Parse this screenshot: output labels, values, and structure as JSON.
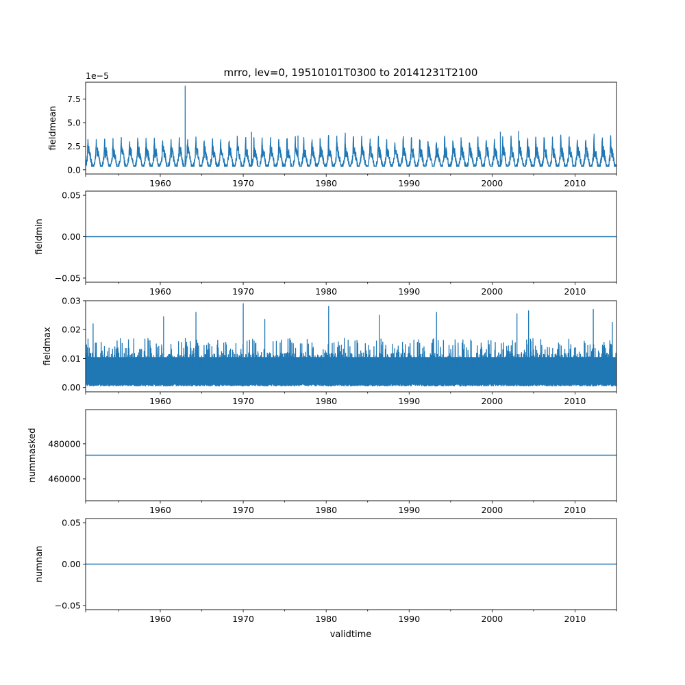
{
  "title": "mrro, lev=0, 19510101T0300 to 20141231T2100",
  "xlabel": "validtime",
  "line_color": "#1f77b4",
  "chart_data": [
    {
      "type": "line",
      "ylabel": "fieldmean",
      "offset_label": "1e−5",
      "yticks": [
        {
          "value": 0,
          "label": "0.0"
        },
        {
          "value": 2.5,
          "label": "2.5"
        },
        {
          "value": 5.0,
          "label": "5.0"
        },
        {
          "value": 7.5,
          "label": "7.5"
        }
      ],
      "xticks": [
        {
          "value": 1960,
          "label": "1960"
        },
        {
          "value": 1970,
          "label": "1970"
        },
        {
          "value": 1980,
          "label": "1980"
        },
        {
          "value": 1990,
          "label": "1990"
        },
        {
          "value": 2000,
          "label": "2000"
        },
        {
          "value": 2010,
          "label": "2010"
        }
      ],
      "xlim": [
        1951.0,
        2015.0
      ],
      "ylim": [
        -0.45,
        9.3
      ],
      "series": [
        {
          "name": "fieldmean",
          "pattern": "seasonal",
          "base": 1.05,
          "amp": 0.85,
          "noise": 0.6,
          "floor": 0.35,
          "spikes": [
            [
              1963.0,
              8.9
            ],
            [
              1971.0,
              4.0
            ],
            [
              1976.6,
              3.6
            ],
            [
              1982.3,
              3.9
            ],
            [
              2001.0,
              4.0
            ],
            [
              2003.2,
              4.1
            ],
            [
              2012.3,
              3.8
            ]
          ]
        }
      ]
    },
    {
      "type": "line",
      "ylabel": "fieldmin",
      "yticks": [
        {
          "value": -0.05,
          "label": "−0.05"
        },
        {
          "value": 0,
          "label": "0.00"
        },
        {
          "value": 0.05,
          "label": "0.05"
        }
      ],
      "xticks": [
        {
          "value": 1960,
          "label": "1960"
        },
        {
          "value": 1970,
          "label": "1970"
        },
        {
          "value": 1980,
          "label": "1980"
        },
        {
          "value": 1990,
          "label": "1990"
        },
        {
          "value": 2000,
          "label": "2000"
        },
        {
          "value": 2010,
          "label": "2010"
        }
      ],
      "xlim": [
        1951.0,
        2015.0
      ],
      "ylim": [
        -0.055,
        0.055
      ],
      "series": [
        {
          "name": "fieldmin",
          "pattern": "constant",
          "value": 0.0
        }
      ]
    },
    {
      "type": "line",
      "ylabel": "fieldmax",
      "yticks": [
        {
          "value": 0,
          "label": "0.00"
        },
        {
          "value": 0.01,
          "label": "0.01"
        },
        {
          "value": 0.02,
          "label": "0.02"
        },
        {
          "value": 0.03,
          "label": "0.03"
        }
      ],
      "xticks": [
        {
          "value": 1960,
          "label": "1960"
        },
        {
          "value": 1970,
          "label": "1970"
        },
        {
          "value": 1980,
          "label": "1980"
        },
        {
          "value": 1990,
          "label": "1990"
        },
        {
          "value": 2000,
          "label": "2000"
        },
        {
          "value": 2010,
          "label": "2010"
        }
      ],
      "xlim": [
        1951.0,
        2015.0
      ],
      "ylim": [
        -0.0015,
        0.03
      ],
      "series": [
        {
          "name": "fieldmax",
          "pattern": "dense",
          "floor": 0.0005,
          "typical": 0.012,
          "peak": 0.017,
          "spikes": [
            [
              1951.9,
              0.022
            ],
            [
              1960.4,
              0.0245
            ],
            [
              1964.3,
              0.026
            ],
            [
              1970.0,
              0.029
            ],
            [
              1972.6,
              0.0235
            ],
            [
              1980.3,
              0.028
            ],
            [
              1986.4,
              0.025
            ],
            [
              1993.3,
              0.026
            ],
            [
              2003.0,
              0.0255
            ],
            [
              2004.4,
              0.0265
            ],
            [
              2012.2,
              0.027
            ],
            [
              2014.5,
              0.0225
            ]
          ]
        }
      ]
    },
    {
      "type": "line",
      "ylabel": "nummasked",
      "yticks": [
        {
          "value": 460000,
          "label": "460000"
        },
        {
          "value": 480000,
          "label": "480000"
        }
      ],
      "xticks": [
        {
          "value": 1960,
          "label": "1960"
        },
        {
          "value": 1970,
          "label": "1970"
        },
        {
          "value": 1980,
          "label": "1980"
        },
        {
          "value": 1990,
          "label": "1990"
        },
        {
          "value": 2000,
          "label": "2000"
        },
        {
          "value": 2010,
          "label": "2010"
        }
      ],
      "xlim": [
        1951.0,
        2015.0
      ],
      "ylim": [
        447500,
        499500
      ],
      "series": [
        {
          "name": "nummasked",
          "pattern": "constant",
          "value": 473500
        }
      ]
    },
    {
      "type": "line",
      "ylabel": "numnan",
      "yticks": [
        {
          "value": -0.05,
          "label": "−0.05"
        },
        {
          "value": 0,
          "label": "0.00"
        },
        {
          "value": 0.05,
          "label": "0.05"
        }
      ],
      "xticks": [
        {
          "value": 1960,
          "label": "1960"
        },
        {
          "value": 1970,
          "label": "1970"
        },
        {
          "value": 1980,
          "label": "1980"
        },
        {
          "value": 1990,
          "label": "1990"
        },
        {
          "value": 2000,
          "label": "2000"
        },
        {
          "value": 2010,
          "label": "2010"
        }
      ],
      "xlim": [
        1951.0,
        2015.0
      ],
      "ylim": [
        -0.055,
        0.055
      ],
      "series": [
        {
          "name": "numnan",
          "pattern": "constant",
          "value": 0.0
        }
      ]
    }
  ]
}
